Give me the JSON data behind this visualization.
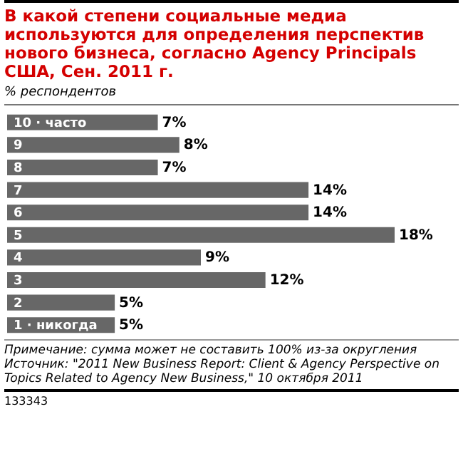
{
  "chart_data": {
    "type": "bar",
    "orientation": "horizontal",
    "title": "В какой степени социальные медиа используются для определения перспектив нового бизнеса, согласно Agency Principals США, Сен. 2011 г.",
    "subtitle": "% респондентов",
    "categories": [
      "10 · часто",
      "9",
      "8",
      "7",
      "6",
      "5",
      "4",
      "3",
      "2",
      "1 · никогда"
    ],
    "values": [
      7,
      8,
      7,
      14,
      14,
      18,
      9,
      12,
      5,
      5
    ],
    "value_labels": [
      "7%",
      "8%",
      "7%",
      "14%",
      "14%",
      "18%",
      "9%",
      "12%",
      "5%",
      "5%"
    ],
    "color": "#676767",
    "annotations": [
      "Примечание: сумма может не составить 100% из-за округления",
      "Источник: \"2011 New Business Report: Client & Agency Perspective on Topics Related to Agency New Business,\" 10 октября 2011",
      "133343"
    ]
  }
}
